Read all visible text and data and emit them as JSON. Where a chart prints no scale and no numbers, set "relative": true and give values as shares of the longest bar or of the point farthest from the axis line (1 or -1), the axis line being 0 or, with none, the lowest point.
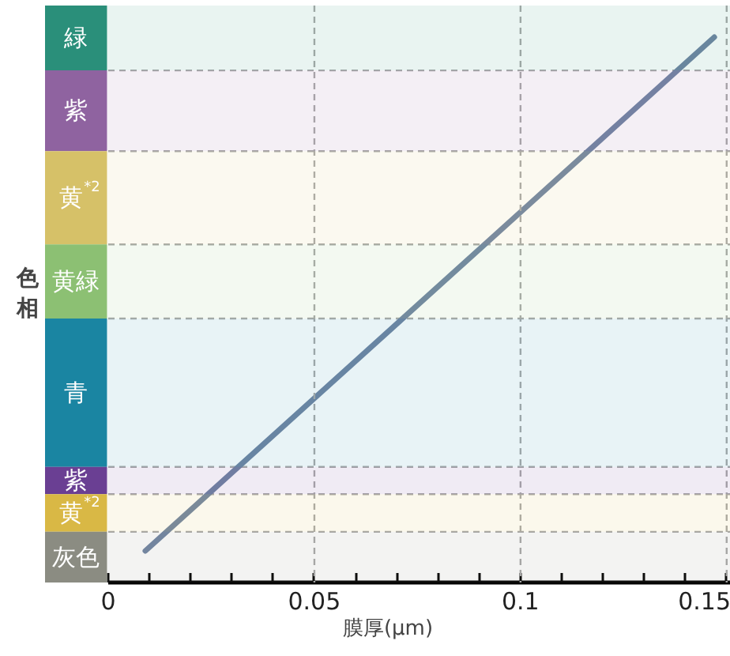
{
  "chart_data": {
    "type": "line",
    "relative": true,
    "xlabel": "膜厚(μm)",
    "ylabel": "色相",
    "xlim": [
      0,
      0.151
    ],
    "xticks": [
      0,
      {
        "value": 0.01,
        "label": null
      },
      {
        "value": 0.02,
        "label": null
      },
      {
        "value": 0.03,
        "label": null
      },
      {
        "value": 0.04,
        "label": null
      },
      {
        "value": 0.05,
        "label": "0.05"
      },
      {
        "value": 0.06,
        "label": null
      },
      {
        "value": 0.07,
        "label": null
      },
      {
        "value": 0.08,
        "label": null
      },
      {
        "value": 0.09,
        "label": null
      },
      {
        "value": 0.1,
        "label": "0.1"
      },
      {
        "value": 0.11,
        "label": null
      },
      {
        "value": 0.12,
        "label": null
      },
      {
        "value": 0.13,
        "label": null
      },
      {
        "value": 0.14,
        "label": null
      },
      {
        "value": 0.15,
        "label": "0.15"
      }
    ],
    "grid": "x",
    "line_style": "solid",
    "marker": "none",
    "series": [
      {
        "color": "#7185a3",
        "x": [
          0.009,
          0.147
        ],
        "values": [
          0.058,
          1
        ]
      }
    ],
    "bands": [
      {
        "axis": "y",
        "from": 0.939,
        "to": 1.058,
        "label": "緑",
        "color": "#2a8f7a"
      },
      {
        "axis": "y",
        "from": 0.791,
        "to": 0.939,
        "label": "紫",
        "color": "#8f63a0"
      },
      {
        "axis": "y",
        "from": 0.62,
        "to": 0.791,
        "label": "黄$^{*2}$",
        "color": "#d6c168"
      },
      {
        "axis": "y",
        "from": 0.484,
        "to": 0.62,
        "label": "黄緑",
        "color": "#8cc073"
      },
      {
        "axis": "y",
        "from": 0.212,
        "to": 0.484,
        "label": "青",
        "color": "#1a85a2"
      },
      {
        "axis": "y",
        "from": 0.162,
        "to": 0.212,
        "label": "紫",
        "color": "#6a3f93"
      },
      {
        "axis": "y",
        "from": 0.093,
        "to": 0.162,
        "label": "黄$^{*2}$",
        "color": "#d9b845"
      },
      {
        "axis": "y",
        "from": 0,
        "to": 0.093,
        "label": "灰色",
        "color": "#8b8c82"
      }
    ]
  }
}
